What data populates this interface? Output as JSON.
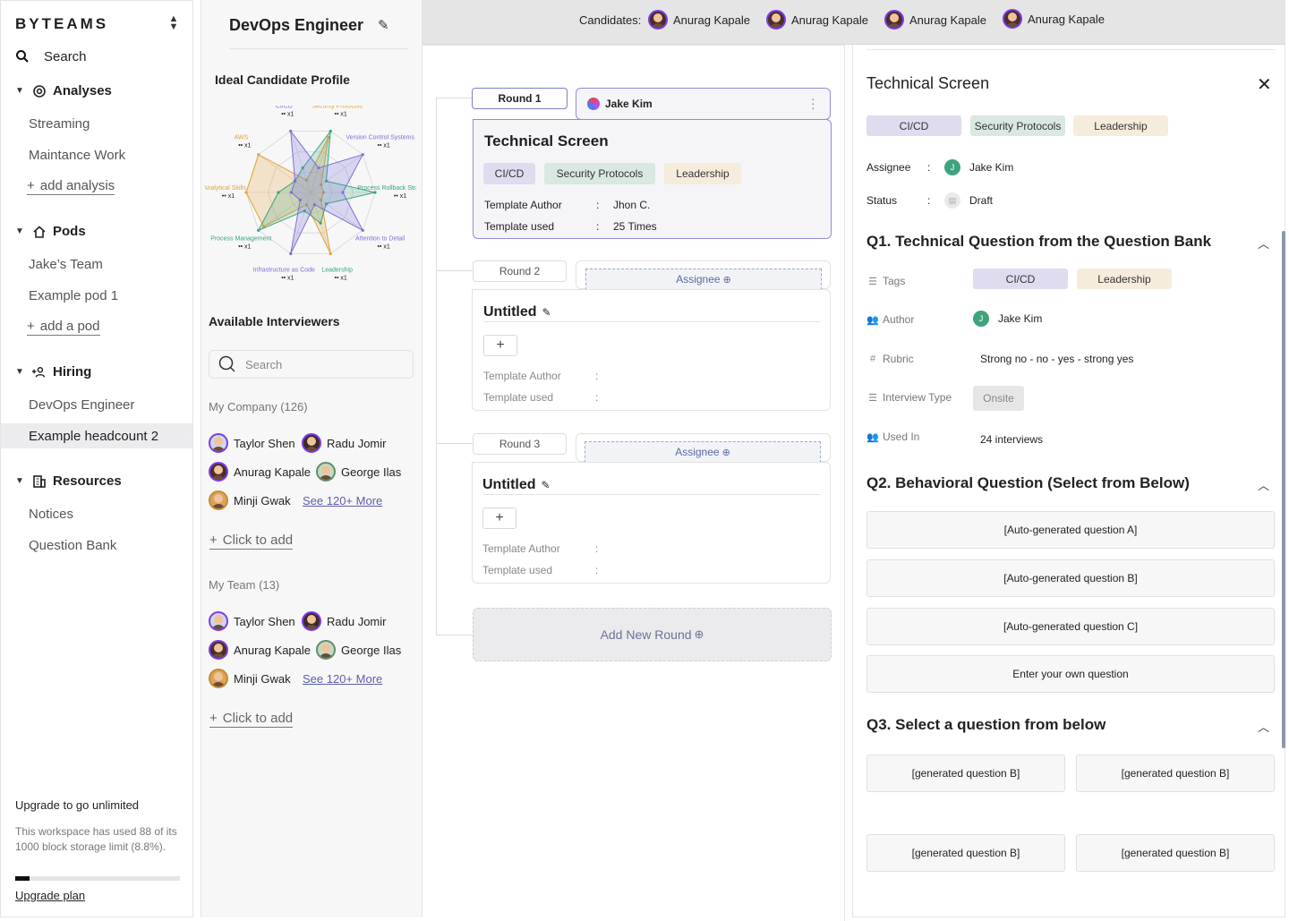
{
  "nav": {
    "brand": "BYTEAMS",
    "search_label": "Search",
    "sections": {
      "analyses": {
        "label": "Analyses",
        "items": [
          "Streaming",
          "Maintance Work"
        ],
        "add_label": "add analysis"
      },
      "pods": {
        "label": "Pods",
        "items": [
          "Jake’s Team",
          "Example pod 1"
        ],
        "add_label": "add a pod"
      },
      "hiring": {
        "label": "Hiring",
        "items": [
          "DevOps Engineer",
          "Example headcount 2"
        ],
        "active_item": "Example headcount 2"
      },
      "resources": {
        "label": "Resources",
        "items": [
          "Notices",
          "Question Bank"
        ]
      }
    },
    "upgrade": {
      "title": "Upgrade to go unlimited",
      "description": "This workspace has used 88 of its 1000 block storage limit (8.8%).",
      "usage_fraction": 0.088,
      "link": "Upgrade plan"
    }
  },
  "profile": {
    "title": "DevOps Engineer",
    "ideal_heading": "Ideal Candidate Profile",
    "radar": {
      "axes": [
        {
          "label": "Security Protocols",
          "weight": "x1",
          "color": "#e0a33a"
        },
        {
          "label": "Version Control Systems",
          "weight": "x1",
          "color": "#7b6fd6"
        },
        {
          "label": "Process Rollback Strategies",
          "weight": "x1",
          "color": "#3ba37a"
        },
        {
          "label": "Attention to Detail",
          "weight": "x1",
          "color": "#7b6fd6"
        },
        {
          "label": "Leadership",
          "weight": "x1",
          "color": "#3ba37a"
        },
        {
          "label": "Infrastructure as Code",
          "weight": "x1",
          "color": "#7b6fd6"
        },
        {
          "label": "Process Management",
          "weight": "x1",
          "color": "#3ba37a"
        },
        {
          "label": "Analytical Skills",
          "weight": "x1",
          "color": "#e0a33a"
        },
        {
          "label": "AWS",
          "weight": "x1",
          "color": "#e0a33a"
        },
        {
          "label": "CI/CD",
          "weight": "x1",
          "color": "#7b6fd6"
        }
      ]
    },
    "available_heading": "Available Interviewers",
    "search_placeholder": "Search",
    "company": {
      "heading": "My Company (126)",
      "people": [
        "Taylor Shen",
        "Radu Jomir",
        "Anurag Kapale",
        "George Ilas",
        "Minji Gwak"
      ],
      "see_more": "See 120+ More",
      "add_label": "Click to add"
    },
    "team": {
      "heading": "My Team (13)",
      "people": [
        "Taylor Shen",
        "Radu Jomir",
        "Anurag Kapale",
        "George Ilas",
        "Minji Gwak"
      ],
      "see_more": "See 120+ More",
      "add_label": "Click to add"
    }
  },
  "candidates": {
    "label": "Candidates:",
    "names": [
      "Anurag Kapale",
      "Anurag Kapale",
      "Anurag Kapale",
      "Anurag Kapale"
    ]
  },
  "rounds": {
    "items": [
      {
        "tab": "Round 1",
        "assignee": "Jake Kim",
        "title": "Technical Screen",
        "tags": [
          "CI/CD",
          "Security Protocols",
          "Leadership"
        ],
        "template_author_label": "Template Author",
        "template_author": "Jhon C.",
        "template_used_label": "Template used",
        "template_used": "25 Times"
      },
      {
        "tab": "Round 2",
        "assignee_placeholder": "Assignee",
        "title": "Untitled",
        "template_author_label": "Template Author",
        "template_used_label": "Template used"
      },
      {
        "tab": "Round 3",
        "assignee_placeholder": "Assignee",
        "title": "Untitled",
        "template_author_label": "Template Author",
        "template_used_label": "Template used"
      }
    ],
    "add_label": "Add New Round"
  },
  "detail": {
    "title": "Technical Screen",
    "tags": [
      "CI/CD",
      "Security Protocols",
      "Leadership"
    ],
    "assignee_label": "Assignee",
    "assignee_initial": "J",
    "assignee": "Jake Kim",
    "status_label": "Status",
    "status": "Draft",
    "q1": {
      "heading": "Q1. Technical Question from the Question Bank",
      "tags_label": "Tags",
      "tags": [
        "CI/CD",
        "Leadership"
      ],
      "author_label": "Author",
      "author_initial": "J",
      "author": "Jake Kim",
      "rubric_label": "Rubric",
      "rubric": "Strong no - no - yes - strong yes",
      "type_label": "Interview Type",
      "type": "Onsite",
      "used_label": "Used In",
      "used": "24 interviews"
    },
    "q2": {
      "heading": "Q2. Behavioral Question (Select from Below)",
      "options": [
        "[Auto-generated question A]",
        "[Auto-generated question B]",
        "[Auto-generated question C]",
        "Enter your own question"
      ]
    },
    "q3": {
      "heading": "Q3. Select a question from below",
      "options": [
        "[generated question B]",
        "[generated question B]",
        "[generated question B]",
        "[generated question B]"
      ]
    }
  },
  "colors": {
    "tag_purple": "#dedcee",
    "tag_green": "#d9e8e1",
    "tag_peach": "#f6ecdc",
    "accent": "#8f8cd6"
  }
}
